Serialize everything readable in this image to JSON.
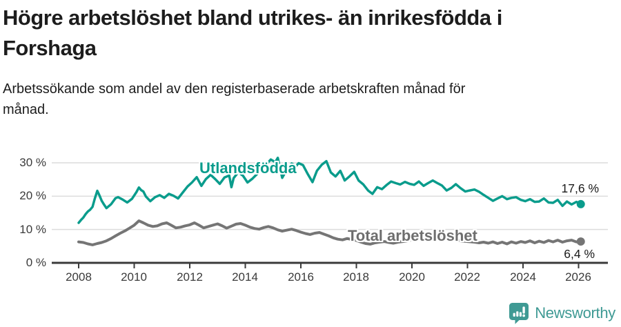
{
  "header": {
    "title_line1": "Högre arbetslöshet bland utrikes- än inrikesfödda i",
    "title_line2": "Forshaga",
    "subtitle_line1": "Arbetssökande som andel av den registerbaserade arbetskraften månad för",
    "subtitle_line2": "månad."
  },
  "footer": {
    "brand": "Newsworthy",
    "brand_color": "#3f9a94",
    "logo_icon": "speech-bubble-bar-chart-icon"
  },
  "colors": {
    "accent_teal": "#0a9c8c",
    "series_gray": "#757575",
    "axis": "#3a3a3a",
    "gridline": "#dcdcdc",
    "text": "#1a1a1a",
    "tick_text": "#3a3a3a",
    "background": "#ffffff"
  },
  "chart_data": {
    "type": "line",
    "title": "Högre arbetslöshet bland utrikes- än inrikesfödda i Forshaga",
    "subtitle": "Arbetssökande som andel av den registerbaserade arbetskraften månad för månad.",
    "xlabel": "",
    "ylabel": "",
    "grid": "horizontal",
    "x_axis": {
      "min": 2008,
      "max": 2026.4,
      "tick_labels": [
        "2008",
        "2010",
        "2012",
        "2014",
        "2016",
        "2018",
        "2020",
        "2022",
        "2024",
        "2026"
      ]
    },
    "y_axis": {
      "min": 0,
      "max": 32.5,
      "unit": "%",
      "tick_values": [
        0,
        10,
        20,
        30
      ],
      "tick_labels": [
        "0 %",
        "10 %",
        "20 %",
        "30 %"
      ]
    },
    "series": [
      {
        "name": "Utlandsfödda",
        "color": "#0a9c8c",
        "line_width": 3.5,
        "end_label": "17,6 %",
        "end_value": 17.6,
        "points": [
          [
            2008.0,
            12.0
          ],
          [
            2008.08,
            12.8
          ],
          [
            2008.17,
            13.6
          ],
          [
            2008.25,
            14.6
          ],
          [
            2008.33,
            15.4
          ],
          [
            2008.42,
            16.0
          ],
          [
            2008.5,
            16.8
          ],
          [
            2008.58,
            19.2
          ],
          [
            2008.67,
            21.6
          ],
          [
            2008.75,
            20.2
          ],
          [
            2008.83,
            18.6
          ],
          [
            2008.92,
            17.4
          ],
          [
            2009.0,
            16.4
          ],
          [
            2009.17,
            17.6
          ],
          [
            2009.33,
            19.4
          ],
          [
            2009.42,
            19.7
          ],
          [
            2009.58,
            19.0
          ],
          [
            2009.75,
            18.1
          ],
          [
            2009.92,
            19.2
          ],
          [
            2010.08,
            21.2
          ],
          [
            2010.17,
            22.6
          ],
          [
            2010.25,
            21.8
          ],
          [
            2010.33,
            21.4
          ],
          [
            2010.42,
            19.9
          ],
          [
            2010.58,
            18.5
          ],
          [
            2010.75,
            19.7
          ],
          [
            2010.92,
            20.3
          ],
          [
            2011.08,
            19.5
          ],
          [
            2011.25,
            20.7
          ],
          [
            2011.42,
            20.1
          ],
          [
            2011.58,
            19.3
          ],
          [
            2011.75,
            21.1
          ],
          [
            2011.92,
            22.9
          ],
          [
            2012.08,
            24.1
          ],
          [
            2012.25,
            25.7
          ],
          [
            2012.42,
            23.1
          ],
          [
            2012.58,
            25.1
          ],
          [
            2012.75,
            26.4
          ],
          [
            2012.92,
            25.1
          ],
          [
            2013.08,
            23.7
          ],
          [
            2013.25,
            25.6
          ],
          [
            2013.42,
            26.2
          ],
          [
            2013.5,
            22.7
          ],
          [
            2013.58,
            25.4
          ],
          [
            2013.75,
            27.2
          ],
          [
            2013.92,
            26.1
          ],
          [
            2014.08,
            24.1
          ],
          [
            2014.25,
            25.2
          ],
          [
            2014.42,
            26.6
          ],
          [
            2014.58,
            27.9
          ],
          [
            2014.75,
            29.5
          ],
          [
            2014.92,
            31.0
          ],
          [
            2015.08,
            30.2
          ],
          [
            2015.17,
            31.5
          ],
          [
            2015.33,
            25.5
          ],
          [
            2015.5,
            28.1
          ],
          [
            2015.67,
            29.8
          ],
          [
            2015.83,
            29.1
          ],
          [
            2015.92,
            29.9
          ],
          [
            2016.08,
            29.3
          ],
          [
            2016.25,
            26.6
          ],
          [
            2016.42,
            24.2
          ],
          [
            2016.58,
            27.6
          ],
          [
            2016.75,
            29.4
          ],
          [
            2016.92,
            30.5
          ],
          [
            2017.08,
            27.1
          ],
          [
            2017.25,
            25.9
          ],
          [
            2017.42,
            27.6
          ],
          [
            2017.58,
            24.7
          ],
          [
            2017.75,
            25.9
          ],
          [
            2017.92,
            27.3
          ],
          [
            2018.08,
            24.7
          ],
          [
            2018.25,
            23.5
          ],
          [
            2018.42,
            21.7
          ],
          [
            2018.58,
            20.7
          ],
          [
            2018.75,
            22.7
          ],
          [
            2018.92,
            22.1
          ],
          [
            2019.08,
            23.3
          ],
          [
            2019.25,
            24.4
          ],
          [
            2019.42,
            23.9
          ],
          [
            2019.58,
            23.5
          ],
          [
            2019.75,
            24.3
          ],
          [
            2019.92,
            23.7
          ],
          [
            2020.08,
            23.4
          ],
          [
            2020.25,
            24.4
          ],
          [
            2020.42,
            23.1
          ],
          [
            2020.58,
            23.9
          ],
          [
            2020.75,
            24.7
          ],
          [
            2020.92,
            23.9
          ],
          [
            2021.08,
            23.2
          ],
          [
            2021.25,
            21.7
          ],
          [
            2021.42,
            22.5
          ],
          [
            2021.58,
            23.6
          ],
          [
            2021.75,
            22.4
          ],
          [
            2021.92,
            21.4
          ],
          [
            2022.08,
            21.7
          ],
          [
            2022.25,
            22.0
          ],
          [
            2022.42,
            21.3
          ],
          [
            2022.58,
            20.4
          ],
          [
            2022.75,
            19.5
          ],
          [
            2022.92,
            18.6
          ],
          [
            2023.08,
            19.3
          ],
          [
            2023.25,
            20.0
          ],
          [
            2023.42,
            19.1
          ],
          [
            2023.58,
            19.5
          ],
          [
            2023.75,
            19.7
          ],
          [
            2023.92,
            18.9
          ],
          [
            2024.08,
            18.5
          ],
          [
            2024.25,
            19.1
          ],
          [
            2024.42,
            18.3
          ],
          [
            2024.58,
            18.4
          ],
          [
            2024.75,
            19.3
          ],
          [
            2024.92,
            18.1
          ],
          [
            2025.08,
            18.0
          ],
          [
            2025.25,
            18.9
          ],
          [
            2025.42,
            17.1
          ],
          [
            2025.58,
            18.4
          ],
          [
            2025.75,
            17.5
          ],
          [
            2025.92,
            18.3
          ],
          [
            2026.08,
            17.6
          ]
        ]
      },
      {
        "name": "Total arbetslöshet",
        "color": "#757575",
        "line_width": 4,
        "end_label": "6,4 %",
        "end_value": 6.4,
        "points": [
          [
            2008.0,
            6.3
          ],
          [
            2008.17,
            6.1
          ],
          [
            2008.33,
            5.7
          ],
          [
            2008.5,
            5.4
          ],
          [
            2008.67,
            5.8
          ],
          [
            2008.83,
            6.1
          ],
          [
            2009.0,
            6.6
          ],
          [
            2009.17,
            7.3
          ],
          [
            2009.33,
            8.1
          ],
          [
            2009.5,
            8.9
          ],
          [
            2009.67,
            9.6
          ],
          [
            2009.83,
            10.4
          ],
          [
            2010.0,
            11.3
          ],
          [
            2010.17,
            12.6
          ],
          [
            2010.33,
            12.0
          ],
          [
            2010.5,
            11.3
          ],
          [
            2010.67,
            10.9
          ],
          [
            2010.83,
            11.1
          ],
          [
            2011.0,
            11.7
          ],
          [
            2011.17,
            12.0
          ],
          [
            2011.33,
            11.3
          ],
          [
            2011.5,
            10.5
          ],
          [
            2011.67,
            10.7
          ],
          [
            2011.83,
            11.1
          ],
          [
            2012.0,
            11.4
          ],
          [
            2012.17,
            12.0
          ],
          [
            2012.33,
            11.3
          ],
          [
            2012.5,
            10.5
          ],
          [
            2012.67,
            10.9
          ],
          [
            2012.83,
            11.3
          ],
          [
            2013.0,
            11.7
          ],
          [
            2013.17,
            11.1
          ],
          [
            2013.33,
            10.4
          ],
          [
            2013.5,
            11.0
          ],
          [
            2013.67,
            11.6
          ],
          [
            2013.83,
            11.8
          ],
          [
            2014.0,
            11.3
          ],
          [
            2014.17,
            10.7
          ],
          [
            2014.33,
            10.3
          ],
          [
            2014.5,
            10.1
          ],
          [
            2014.67,
            10.6
          ],
          [
            2014.83,
            10.9
          ],
          [
            2015.0,
            10.5
          ],
          [
            2015.17,
            9.9
          ],
          [
            2015.33,
            9.5
          ],
          [
            2015.5,
            9.8
          ],
          [
            2015.67,
            10.1
          ],
          [
            2015.83,
            9.7
          ],
          [
            2016.0,
            9.2
          ],
          [
            2016.17,
            8.8
          ],
          [
            2016.33,
            8.5
          ],
          [
            2016.5,
            8.9
          ],
          [
            2016.67,
            9.1
          ],
          [
            2016.83,
            8.6
          ],
          [
            2017.0,
            8.1
          ],
          [
            2017.17,
            7.5
          ],
          [
            2017.33,
            7.1
          ],
          [
            2017.5,
            6.9
          ],
          [
            2017.67,
            7.3
          ],
          [
            2017.83,
            7.0
          ],
          [
            2018.0,
            6.7
          ],
          [
            2018.17,
            6.2
          ],
          [
            2018.33,
            5.8
          ],
          [
            2018.5,
            5.6
          ],
          [
            2018.67,
            6.0
          ],
          [
            2018.83,
            6.2
          ],
          [
            2019.0,
            6.4
          ],
          [
            2019.17,
            6.1
          ],
          [
            2019.33,
            5.9
          ],
          [
            2019.5,
            6.2
          ],
          [
            2019.67,
            6.4
          ],
          [
            2019.83,
            6.6
          ],
          [
            2020.0,
            6.9
          ],
          [
            2020.25,
            7.8
          ],
          [
            2020.5,
            8.2
          ],
          [
            2020.75,
            7.9
          ],
          [
            2021.0,
            7.6
          ],
          [
            2021.25,
            7.2
          ],
          [
            2021.5,
            6.9
          ],
          [
            2021.75,
            6.6
          ],
          [
            2022.0,
            6.4
          ],
          [
            2022.25,
            6.2
          ],
          [
            2022.42,
            6.0
          ],
          [
            2022.58,
            6.2
          ],
          [
            2022.75,
            5.9
          ],
          [
            2022.92,
            6.3
          ],
          [
            2023.08,
            5.8
          ],
          [
            2023.25,
            6.2
          ],
          [
            2023.42,
            5.7
          ],
          [
            2023.58,
            6.3
          ],
          [
            2023.75,
            5.9
          ],
          [
            2023.92,
            6.4
          ],
          [
            2024.08,
            6.1
          ],
          [
            2024.25,
            6.6
          ],
          [
            2024.42,
            6.0
          ],
          [
            2024.58,
            6.5
          ],
          [
            2024.75,
            6.1
          ],
          [
            2024.92,
            6.7
          ],
          [
            2025.08,
            6.3
          ],
          [
            2025.25,
            6.8
          ],
          [
            2025.42,
            6.2
          ],
          [
            2025.58,
            6.6
          ],
          [
            2025.75,
            6.8
          ],
          [
            2025.92,
            6.3
          ],
          [
            2026.08,
            6.4
          ]
        ]
      }
    ]
  }
}
